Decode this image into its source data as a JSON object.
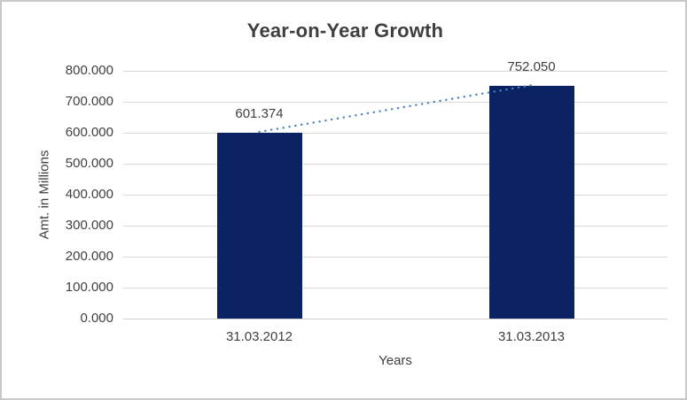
{
  "chart_data": {
    "type": "bar",
    "title": "Year-on-Year Growth",
    "xlabel": "Years",
    "ylabel": "Amt. in Millions",
    "categories": [
      "31.03.2012",
      "31.03.2013"
    ],
    "values": [
      601.374,
      752.05
    ],
    "data_labels": [
      "601.374",
      "752.050"
    ],
    "ytick_labels": [
      "0.000",
      "100.000",
      "200.000",
      "300.000",
      "400.000",
      "500.000",
      "600.000",
      "700.000",
      "800.000"
    ],
    "ylim": [
      0,
      800
    ],
    "grid": true,
    "legend": "none",
    "trendline": {
      "style": "dotted",
      "series": "linear",
      "from_value": 601.374,
      "to_value": 752.05
    },
    "colors": {
      "bar": "#0a2262",
      "gridline": "#d9d9d9",
      "axis_line": "#cfcfcf",
      "text": "#404040",
      "title_text": "#3f3f3f",
      "trendline": "#4e82c0",
      "border": "#c9c9c9",
      "background": "#ffffff"
    }
  }
}
